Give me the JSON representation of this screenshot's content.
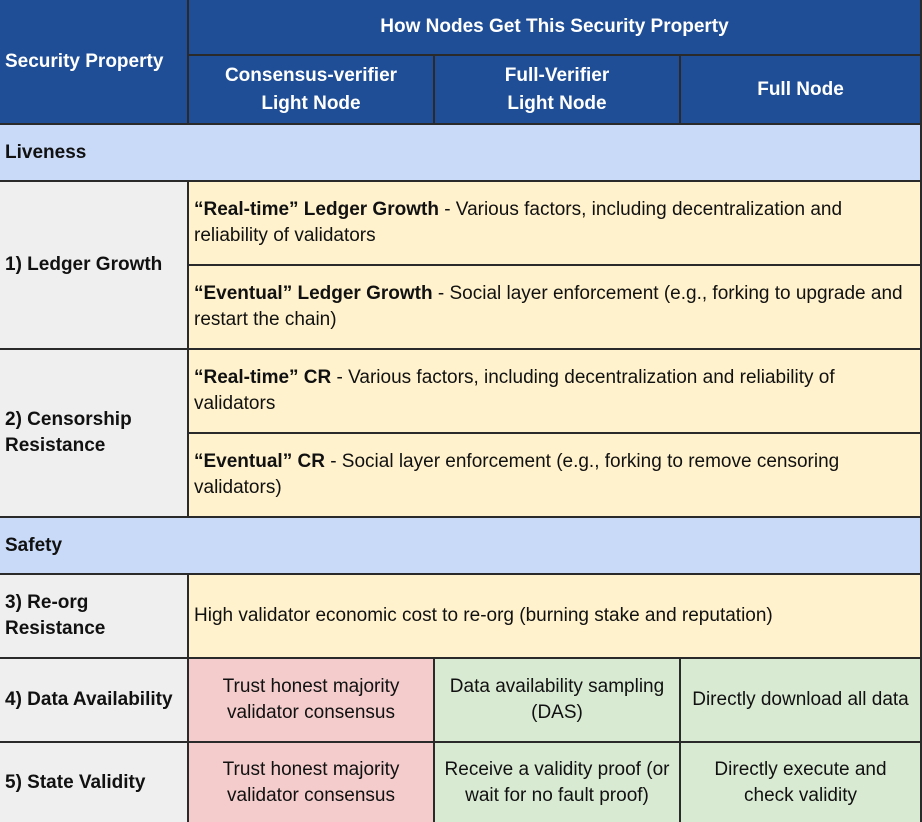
{
  "header": {
    "security_property": "Security Property",
    "how_nodes": "How Nodes Get This Security Property",
    "col_consensus": "Consensus-verifier\nLight Node",
    "col_full_verifier": "Full-Verifier\nLight Node",
    "col_full_node": "Full Node"
  },
  "liveness": {
    "label": "Liveness",
    "ledger_growth": {
      "label": "1) Ledger Growth",
      "realtime_bold": "“Real-time” Ledger Growth",
      "realtime_text": " - Various factors, including decentralization and reliability of validators",
      "eventual_bold": "“Eventual” Ledger Growth",
      "eventual_text": " - Social layer enforcement (e.g., forking to upgrade and restart the chain)"
    },
    "censorship": {
      "label": "2) Censorship Resistance",
      "realtime_bold": "“Real-time” CR",
      "realtime_text": " - Various factors, including decentralization and reliability of validators",
      "eventual_bold": "“Eventual” CR",
      "eventual_text": " - Social layer enforcement (e.g., forking to remove censoring validators)"
    }
  },
  "safety": {
    "label": "Safety",
    "reorg": {
      "label": "3) Re-org Resistance",
      "text": "High validator economic cost to re-org (burning stake and reputation)"
    },
    "data_availability": {
      "label": "4) Data Availability",
      "consensus": "Trust honest majority validator consensus",
      "full_verifier": "Data availability sampling (DAS)",
      "full_node": "Directly download all data"
    },
    "state_validity": {
      "label": "5) State Validity",
      "consensus": "Trust honest majority validator consensus",
      "full_verifier": "Receive a validity proof (or wait for no fault proof)",
      "full_node": "Directly execute and check validity"
    }
  },
  "colors": {
    "header_bg": "#1f4e96",
    "section_bg": "#c9daf8",
    "property_bg": "#efefef",
    "shared_bg": "#fff2cc",
    "trust_bg": "#f4cccc",
    "verify_bg": "#d9ead3"
  }
}
